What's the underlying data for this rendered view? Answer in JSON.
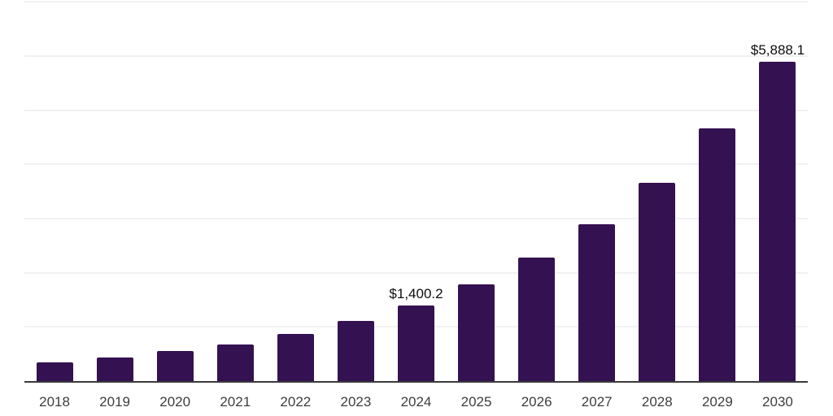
{
  "chart_data": {
    "type": "bar",
    "title": "",
    "xlabel": "",
    "ylabel": "",
    "categories": [
      "2018",
      "2019",
      "2020",
      "2021",
      "2022",
      "2023",
      "2024",
      "2025",
      "2026",
      "2027",
      "2028",
      "2029",
      "2030"
    ],
    "values": [
      350,
      435,
      550,
      680,
      865,
      1115,
      1400.2,
      1780,
      2280,
      2895,
      3660,
      4665,
      5888.1
    ],
    "point_labels": [
      "",
      "",
      "",
      "",
      "",
      "",
      "$1,400.2",
      "",
      "",
      "",
      "",
      "",
      "$5,888.1"
    ],
    "ylim": [
      0,
      7000
    ],
    "gridline_step": 1000,
    "grid": "horizontal-only",
    "legend": "none",
    "colors": {
      "bar": "#341151",
      "axis_line": "#3a3a3a",
      "gridline": "#f1f1f1",
      "tick_label": "#3d3d3d",
      "value_label": "#0d0d0d",
      "background": "#ffffff"
    }
  }
}
